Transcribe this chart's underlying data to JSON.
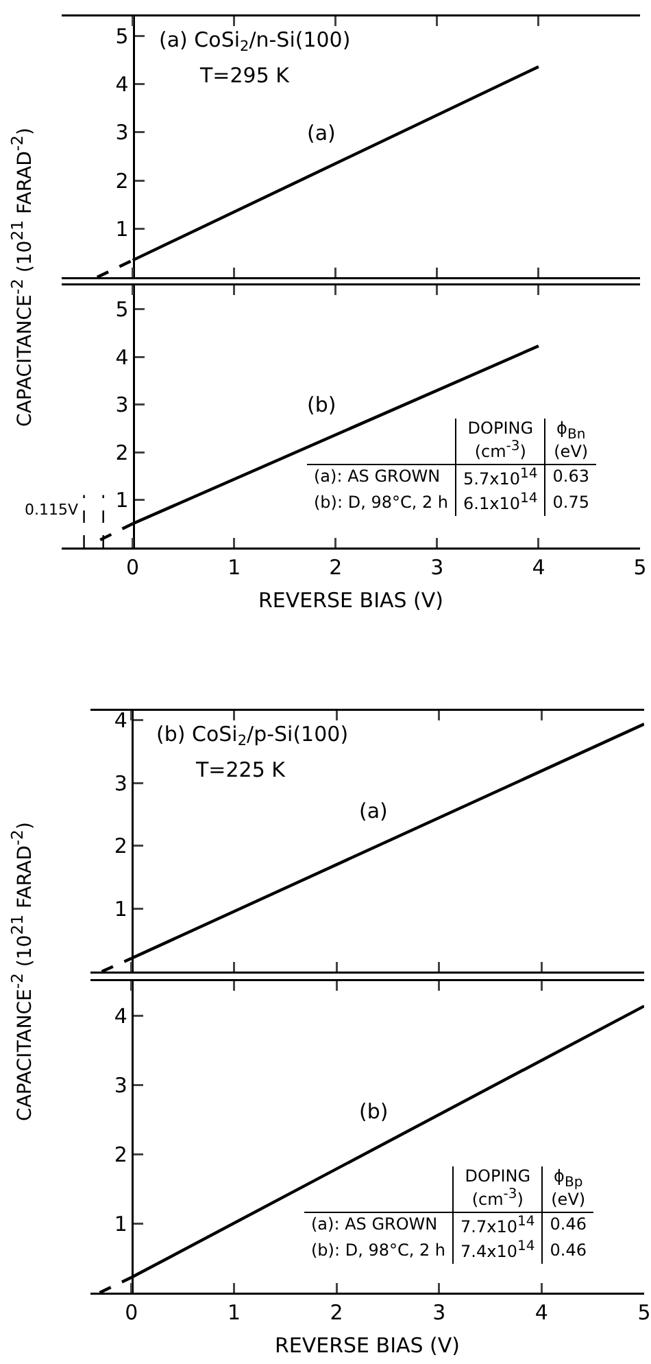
{
  "chart_data": [
    {
      "type": "line",
      "title": "(a) CoSi$_{2}$/n-Si(100)",
      "subtitle": "T=295 K",
      "ylabel": "CAPACITANCE$^{-2}$ (10$^{21}$ FARAD$^{-2}$)",
      "xlim": [
        -0.7,
        5
      ],
      "xticks": [
        0,
        1,
        2,
        3,
        4
      ],
      "ylim": [
        0,
        5.4
      ],
      "yticks": [
        1,
        2,
        3,
        4,
        5
      ],
      "tick_labels": "y",
      "series": [
        {
          "name": "(a)",
          "color": "#000000",
          "x": [
            0,
            4
          ],
          "values": [
            0.35,
            4.36
          ]
        },
        {
          "color": "#000000",
          "line_style": "dashed",
          "x": [
            -0.35,
            0
          ],
          "values": [
            0,
            0.35
          ]
        }
      ]
    },
    {
      "type": "line",
      "xlabel": "REVERSE BIAS (V)",
      "xlim": [
        -0.7,
        5
      ],
      "xticks": [
        0,
        1,
        2,
        3,
        4,
        5
      ],
      "ylim": [
        0,
        5.5
      ],
      "yticks": [
        1,
        2,
        3,
        4,
        5
      ],
      "series": [
        {
          "name": "(b)",
          "color": "#000000",
          "x": [
            0,
            4
          ],
          "values": [
            0.5,
            4.23
          ]
        },
        {
          "color": "#000000",
          "line_style": "dashed",
          "x": [
            -0.32,
            0
          ],
          "values": [
            0.16,
            0.5
          ]
        }
      ],
      "ref_lines": [
        {
          "axis": "x",
          "value": -0.48,
          "label": "0.115V",
          "line_style": "dashed"
        },
        {
          "axis": "x",
          "value": -0.29,
          "line_style": "dashed"
        }
      ],
      "annotations": [
        "DOPING\n(cm$^{-3}$)",
        "ϕ$_{Bn}$\n(eV)",
        "(a): AS GROWN",
        "5.7x10$^{14}$",
        "0.63",
        "(b): D, 98°C, 2 h",
        "6.1x10$^{14}$",
        "0.75"
      ]
    },
    {
      "type": "line",
      "title": "(b) CoSi$_{2}$/p-Si(100)",
      "subtitle": "T=225 K",
      "ylabel": "CAPACITANCE$^{-2}$ (10$^{21}$ FARAD$^{-2}$)",
      "xlim": [
        -0.4,
        5
      ],
      "xticks": [
        0,
        1,
        2,
        3,
        4,
        5
      ],
      "ylim": [
        0,
        4.15
      ],
      "yticks": [
        1,
        2,
        3,
        4
      ],
      "tick_labels": "y",
      "series": [
        {
          "name": "(a)",
          "color": "#000000",
          "x": [
            0,
            5
          ],
          "values": [
            0.21,
            3.94
          ]
        },
        {
          "color": "#000000",
          "line_style": "dashed",
          "x": [
            -0.29,
            0
          ],
          "values": [
            0,
            0.21
          ]
        }
      ]
    },
    {
      "type": "line",
      "xlabel": "REVERSE BIAS (V)",
      "xlim": [
        -0.4,
        5
      ],
      "xticks": [
        0,
        1,
        2,
        3,
        4,
        5
      ],
      "ylim": [
        0,
        4.5
      ],
      "yticks": [
        1,
        2,
        3,
        4
      ],
      "series": [
        {
          "name": "(b)",
          "color": "#000000",
          "x": [
            0,
            5
          ],
          "values": [
            0.22,
            4.14
          ]
        },
        {
          "color": "#000000",
          "line_style": "dashed",
          "x": [
            -0.31,
            0
          ],
          "values": [
            0,
            0.22
          ]
        }
      ],
      "annotations": [
        "DOPING\n(cm$^{-3}$)",
        "ϕ$_{Bp}$\n(eV)",
        "(a): AS GROWN",
        "7.7x10$^{14}$",
        "0.46",
        "(b): D, 98°C, 2 h",
        "7.4x10$^{14}$",
        "0.46"
      ]
    }
  ]
}
